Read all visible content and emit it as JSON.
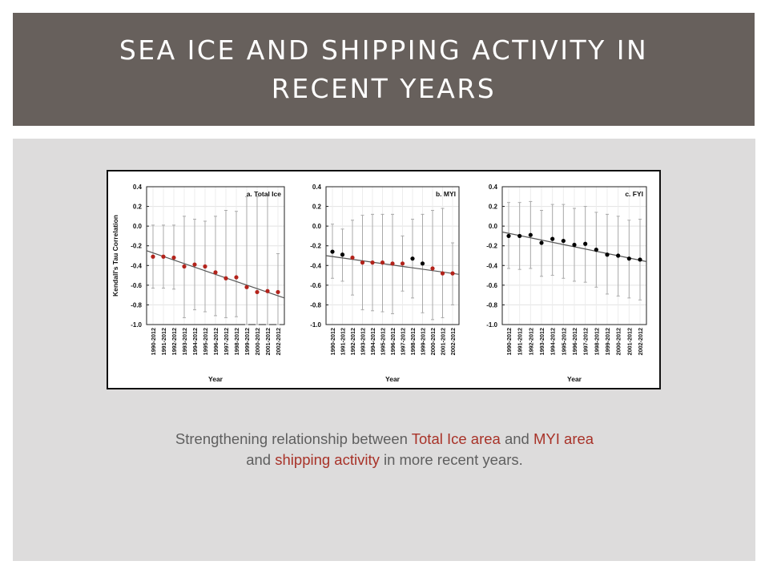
{
  "slide": {
    "title": "SEA ICE AND SHIPPING ACTIVITY IN RECENT YEARS"
  },
  "caption": {
    "part1": "Strengthening relationship between ",
    "hl1": "Total Ice area",
    "part2": " and ",
    "hl2": "MYI area",
    "part3": " and ",
    "hl3": "shipping activity",
    "part4": " in more recent years."
  },
  "colors": {
    "significant": "#b3231b",
    "not_significant": "#000000",
    "trend_line": "#555555",
    "error_bar": "#aaaaaa"
  },
  "chart_data": [
    {
      "type": "scatter",
      "title": "a. Total Ice",
      "xlabel": "Year",
      "ylabel": "Kendall's Tau Correlation",
      "ylim": [
        -1.0,
        0.4
      ],
      "yticks": [
        "0.4",
        "0.2",
        "0.0",
        "-0.2",
        "-0.4",
        "-0.6",
        "-0.8",
        "-1.0"
      ],
      "grid": true,
      "x": [
        "1990-2012",
        "1991-2012",
        "1992-2012",
        "1993-2012",
        "1994-2012",
        "1995-2012",
        "1996-2012",
        "1997-2012",
        "1998-2012",
        "1999-2012",
        "2000-2012",
        "2001-2012",
        "2002-2012"
      ],
      "values": [
        -0.31,
        -0.31,
        -0.32,
        -0.41,
        -0.39,
        -0.41,
        -0.47,
        -0.53,
        -0.52,
        -0.62,
        -0.67,
        -0.66,
        -0.67
      ],
      "error_low": [
        -0.63,
        -0.63,
        -0.64,
        -0.93,
        -0.85,
        -0.87,
        -0.91,
        -0.93,
        -0.92,
        -1.0,
        -1.0,
        -1.0,
        -1.0
      ],
      "error_high": [
        0.01,
        0.01,
        0.01,
        0.1,
        0.07,
        0.05,
        0.1,
        0.16,
        0.15,
        0.3,
        0.3,
        0.32,
        -0.28
      ],
      "significant": [
        true,
        true,
        true,
        true,
        true,
        true,
        true,
        true,
        true,
        true,
        true,
        true,
        true
      ],
      "trend": [
        -0.25,
        -0.73
      ]
    },
    {
      "type": "scatter",
      "title": "b. MYI",
      "xlabel": "Year",
      "ylabel": "",
      "ylim": [
        -1.0,
        0.4
      ],
      "yticks": [
        "0.4",
        "0.2",
        "0.0",
        "-0.2",
        "-0.4",
        "-0.6",
        "-0.8",
        "-1.0"
      ],
      "grid": true,
      "x": [
        "1990-2012",
        "1991-2012",
        "1992-2012",
        "1993-2012",
        "1994-2012",
        "1995-2012",
        "1996-2012",
        "1997-2012",
        "1998-2012",
        "1999-2012",
        "2000-2012",
        "2001-2012",
        "2002-2012"
      ],
      "values": [
        -0.26,
        -0.29,
        -0.32,
        -0.37,
        -0.37,
        -0.37,
        -0.38,
        -0.38,
        -0.33,
        -0.38,
        -0.43,
        -0.48,
        -0.48
      ],
      "error_low": [
        -0.53,
        -0.56,
        -0.7,
        -0.85,
        -0.86,
        -0.87,
        -0.89,
        -0.66,
        -0.73,
        -0.88,
        -0.95,
        -0.93,
        -0.8
      ],
      "error_high": [
        0.02,
        -0.03,
        0.06,
        0.11,
        0.12,
        0.12,
        0.12,
        -0.1,
        0.07,
        0.12,
        0.16,
        0.18,
        -0.17
      ],
      "significant": [
        false,
        false,
        true,
        true,
        true,
        true,
        true,
        true,
        false,
        false,
        true,
        true,
        true
      ],
      "trend": [
        -0.3,
        -0.49
      ]
    },
    {
      "type": "scatter",
      "title": "c. FYI",
      "xlabel": "Year",
      "ylabel": "",
      "ylim": [
        -1.0,
        0.4
      ],
      "yticks": [
        "0.4",
        "0.2",
        "0.0",
        "-0.2",
        "-0.4",
        "-0.6",
        "-0.8",
        "-1.0"
      ],
      "grid": true,
      "x": [
        "1990-2012",
        "1991-2012",
        "1992-2012",
        "1993-2012",
        "1994-2012",
        "1995-2012",
        "1996-2012",
        "1997-2012",
        "1998-2012",
        "1999-2012",
        "2000-2012",
        "2001-2012",
        "2002-2012"
      ],
      "values": [
        -0.1,
        -0.1,
        -0.09,
        -0.17,
        -0.13,
        -0.15,
        -0.19,
        -0.18,
        -0.24,
        -0.29,
        -0.3,
        -0.33,
        -0.34
      ],
      "error_low": [
        -0.43,
        -0.44,
        -0.43,
        -0.51,
        -0.5,
        -0.53,
        -0.56,
        -0.57,
        -0.62,
        -0.69,
        -0.71,
        -0.73,
        -0.75
      ],
      "error_high": [
        0.24,
        0.24,
        0.25,
        0.16,
        0.22,
        0.22,
        0.18,
        0.2,
        0.14,
        0.12,
        0.1,
        0.06,
        0.07
      ],
      "significant": [
        false,
        false,
        false,
        false,
        false,
        false,
        false,
        false,
        false,
        false,
        false,
        false,
        false
      ],
      "trend": [
        -0.06,
        -0.36
      ]
    }
  ]
}
